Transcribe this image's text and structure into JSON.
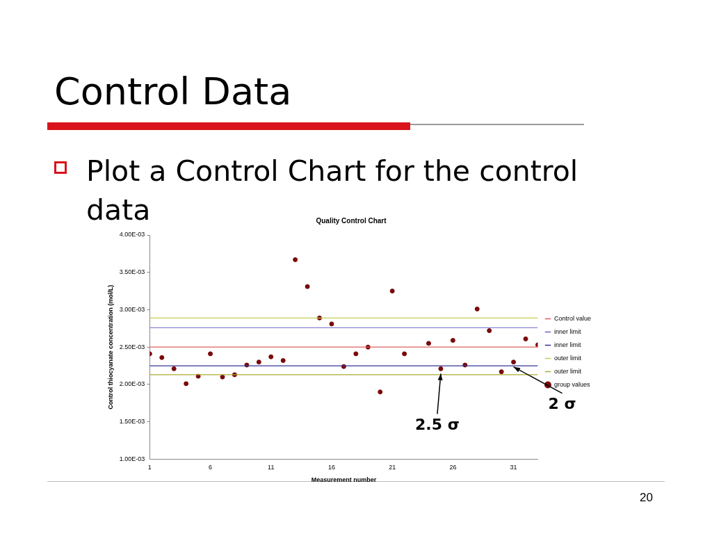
{
  "chart_data": {
    "type": "scatter",
    "title": "Quality Control Chart",
    "xlabel": "Measurement number",
    "ylabel": "Control thiocyanate concentration (mol/L)",
    "annotations": [
      "Control Data",
      "Plot a Control Chart for the control data",
      "20",
      {
        "text": "2.5 σ",
        "x": 25,
        "y": 0.00221
      },
      {
        "text": "2 σ",
        "x": 31,
        "y": 0.0023
      }
    ],
    "xlim": [
      1,
      33
    ],
    "xticks": [
      1,
      6,
      11,
      16,
      21,
      26,
      31
    ],
    "ylim": [
      0.001,
      0.004
    ],
    "yticks": [
      {
        "value": 0.001,
        "label": "1.00E-03"
      },
      {
        "value": 0.0015,
        "label": "1.50E-03"
      },
      {
        "value": 0.002,
        "label": "2.00E-03"
      },
      {
        "value": 0.0025,
        "label": "2.50E-03"
      },
      {
        "value": 0.003,
        "label": "3.00E-03"
      },
      {
        "value": 0.0035,
        "label": "3.50E-03"
      },
      {
        "value": 0.004,
        "label": "4.00E-03"
      }
    ],
    "grid": false,
    "legend": "right",
    "series": [
      {
        "name": "Control value",
        "type": "line",
        "marker": "none",
        "color": "#e06060",
        "x": [
          1,
          33
        ],
        "values": [
          0.0025,
          0.0025
        ]
      },
      {
        "name": "inner limit",
        "type": "line",
        "marker": "none",
        "color": "#6666cc",
        "x": [
          1,
          33
        ],
        "values": [
          0.00276,
          0.00276
        ]
      },
      {
        "name": "inner limit",
        "type": "line",
        "marker": "none",
        "color": "#333399",
        "x": [
          1,
          33
        ],
        "values": [
          0.00225,
          0.00225
        ]
      },
      {
        "name": "outer limit",
        "type": "line",
        "marker": "none",
        "color": "#c8cc50",
        "x": [
          1,
          33
        ],
        "values": [
          0.00289,
          0.00289
        ]
      },
      {
        "name": "outer limit",
        "type": "line",
        "marker": "none",
        "color": "#a8ac30",
        "x": [
          1,
          33
        ],
        "values": [
          0.00213,
          0.00213
        ]
      },
      {
        "name": "group values",
        "marker": "circle",
        "color": "#7a0a0a",
        "x": [
          1,
          2,
          3,
          4,
          5,
          6,
          7,
          8,
          9,
          10,
          11,
          12,
          13,
          14,
          15,
          16,
          17,
          18,
          19,
          20,
          21,
          22,
          23,
          24,
          25,
          26,
          27,
          28,
          29,
          30,
          31,
          32,
          33
        ],
        "values": [
          0.00241,
          0.00236,
          0.00221,
          0.00201,
          0.00211,
          0.00241,
          0.0021,
          0.00213,
          0.00226,
          0.0023,
          0.00237,
          0.00232,
          0.00367,
          0.00331,
          0.00289,
          0.00281,
          0.00224,
          0.00241,
          0.0025,
          0.0019,
          0.00325,
          0.00241,
          null,
          0.00255,
          0.00221,
          0.00259,
          0.00226,
          0.00301,
          0.00272,
          0.00217,
          0.0023,
          0.00261,
          0.00253
        ]
      }
    ]
  }
}
